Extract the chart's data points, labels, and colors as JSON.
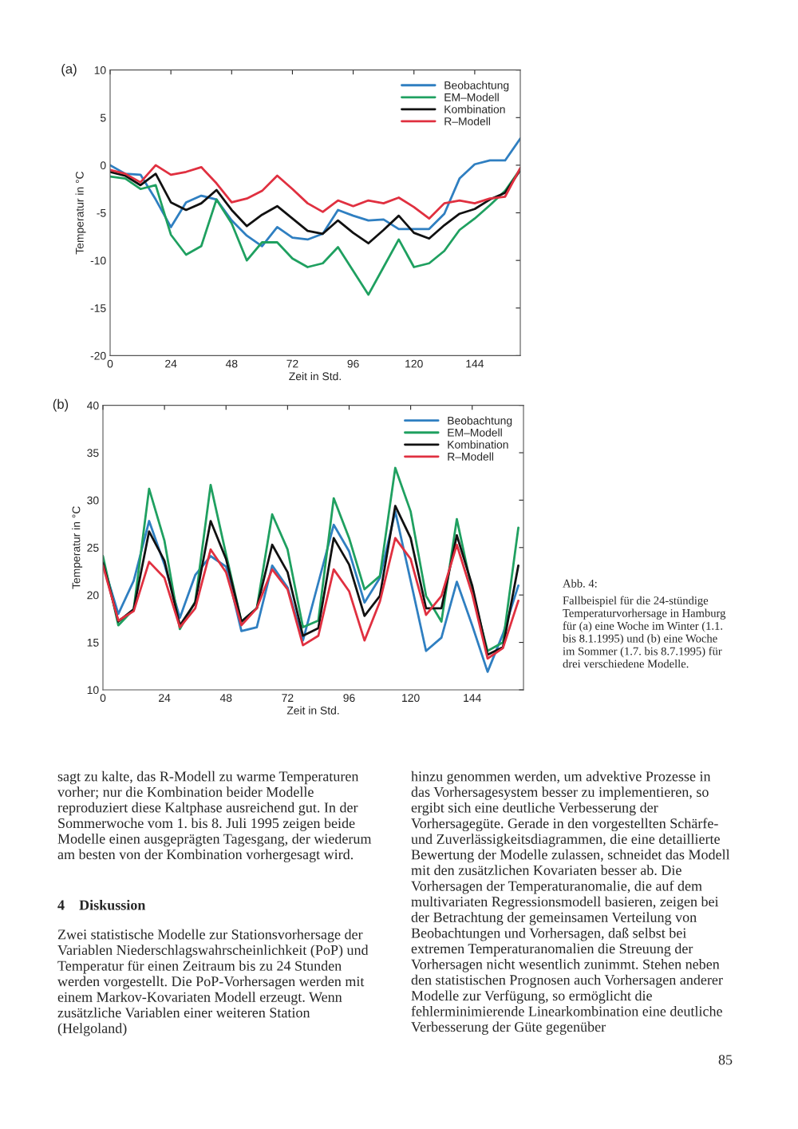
{
  "chart_data": [
    {
      "type": "line",
      "title": "(a)",
      "xlabel": "Zeit in Std.",
      "ylabel": "Temperatur in °C",
      "x": [
        0,
        6,
        12,
        18,
        24,
        30,
        36,
        42,
        48,
        54,
        60,
        66,
        72,
        78,
        84,
        90,
        96,
        102,
        108,
        114,
        120,
        126,
        132,
        138,
        144,
        150,
        156,
        162
      ],
      "xlim": [
        0,
        162
      ],
      "xticks": [
        0,
        24,
        48,
        72,
        96,
        120,
        144
      ],
      "ylim": [
        -20,
        10
      ],
      "yticks": [
        -20,
        -15,
        -10,
        -5,
        0,
        5,
        10
      ],
      "grid": false,
      "legend": "top right",
      "line_style": "solid",
      "series": [
        {
          "name": "Beobachtung",
          "color": "#2f7fc1",
          "values": [
            0,
            -0.9,
            -1.0,
            -3.6,
            -6.5,
            -3.9,
            -3.2,
            -3.6,
            -5.8,
            -7.4,
            -8.5,
            -6.5,
            -7.6,
            -7.8,
            -7.2,
            -4.7,
            -5.3,
            -5.8,
            -5.7,
            -6.7,
            -6.7,
            -6.7,
            -5.1,
            -1.4,
            0.1,
            0.5,
            0.5,
            2.8
          ]
        },
        {
          "name": "EM–Modell",
          "color": "#1fa060",
          "values": [
            -1.2,
            -1.4,
            -2.5,
            -2.1,
            -7.3,
            -9.4,
            -8.5,
            -3.6,
            -6.1,
            -10.0,
            -8.1,
            -8.1,
            -9.8,
            -10.7,
            -10.3,
            -8.6,
            -11.1,
            -13.6,
            -10.7,
            -7.8,
            -10.7,
            -10.3,
            -9.0,
            -6.8,
            -5.6,
            -4.2,
            -2.7,
            -0.4
          ]
        },
        {
          "name": "Kombination",
          "color": "#111111",
          "values": [
            -0.7,
            -1.1,
            -2.1,
            -0.9,
            -3.9,
            -4.7,
            -4.0,
            -2.6,
            -4.7,
            -6.4,
            -5.2,
            -4.3,
            -5.6,
            -6.9,
            -7.2,
            -5.8,
            -7.1,
            -8.2,
            -6.8,
            -5.3,
            -7.1,
            -7.7,
            -6.3,
            -5.1,
            -4.6,
            -3.6,
            -2.9,
            -0.5
          ]
        },
        {
          "name": "R–Modell",
          "color": "#e03040",
          "values": [
            -0.5,
            -0.9,
            -1.8,
            0,
            -1.0,
            -0.7,
            -0.2,
            -1.9,
            -3.9,
            -3.5,
            -2.7,
            -1.1,
            -2.5,
            -4.0,
            -4.9,
            -3.7,
            -4.3,
            -3.7,
            -4.0,
            -3.4,
            -4.4,
            -5.6,
            -4.0,
            -3.7,
            -4.0,
            -3.5,
            -3.3,
            -0.3
          ]
        }
      ]
    },
    {
      "type": "line",
      "title": "(b)",
      "xlabel": "Zeit in Std.",
      "ylabel": "Temperatur in °C",
      "x": [
        0,
        6,
        12,
        18,
        24,
        30,
        36,
        42,
        48,
        54,
        60,
        66,
        72,
        78,
        84,
        90,
        96,
        102,
        108,
        114,
        120,
        126,
        132,
        138,
        144,
        150,
        156,
        162
      ],
      "xlim": [
        0,
        164
      ],
      "xticks": [
        0,
        24,
        48,
        72,
        96,
        120,
        144
      ],
      "ylim": [
        10,
        40
      ],
      "yticks": [
        10,
        15,
        20,
        25,
        30,
        35,
        40
      ],
      "grid": false,
      "legend": "top right",
      "line_style": "solid",
      "series": [
        {
          "name": "Beobachtung",
          "color": "#2f7fc1",
          "values": [
            23.4,
            18.0,
            21.5,
            27.8,
            23.2,
            17.6,
            22.1,
            24.1,
            23.0,
            16.2,
            16.6,
            23.1,
            20.8,
            15.2,
            21.3,
            27.4,
            24.6,
            19.2,
            21.8,
            28.8,
            21.5,
            14.1,
            15.5,
            21.4,
            16.8,
            11.9,
            15.9,
            21.0
          ]
        },
        {
          "name": "EM–Modell",
          "color": "#1fa060",
          "values": [
            24.1,
            16.8,
            18.5,
            31.2,
            25.7,
            16.4,
            19.3,
            31.6,
            24.3,
            17.2,
            18.6,
            28.5,
            24.8,
            16.6,
            17.3,
            30.2,
            26.0,
            20.6,
            22.0,
            33.4,
            28.8,
            19.9,
            17.2,
            28.0,
            20.4,
            14.1,
            15.0,
            27.1
          ]
        },
        {
          "name": "Kombination",
          "color": "#111111",
          "values": [
            23.4,
            17.2,
            18.5,
            26.7,
            23.6,
            16.8,
            19.2,
            27.8,
            23.8,
            17.2,
            18.6,
            25.3,
            22.4,
            15.7,
            16.5,
            26.0,
            23.2,
            17.8,
            19.9,
            29.4,
            26.0,
            18.6,
            18.6,
            26.3,
            21.0,
            13.7,
            14.5,
            23.1
          ]
        },
        {
          "name": "R–Modell",
          "color": "#e03040",
          "values": [
            23.1,
            17.3,
            18.3,
            23.5,
            21.8,
            16.6,
            18.6,
            24.8,
            22.4,
            16.8,
            18.6,
            22.7,
            20.6,
            14.7,
            15.7,
            22.7,
            20.4,
            15.2,
            19.3,
            26.0,
            23.8,
            17.9,
            19.9,
            25.3,
            20.1,
            13.3,
            14.4,
            19.4
          ]
        }
      ],
      "annotations": [
        "Abb. 4:",
        "Fallbeispiel für die 24-stündige Temperaturvorhersage in Hamburg für (a) eine Woche im Winter (1.1. bis 8.1.1995) und (b) eine Woche im Sommer (1.7. bis 8.7.1995) für drei verschiedene Modelle.",
        "sagt zu kalte, das R-Modell zu warme Temperaturen vorher; nur die Kombination beider Modelle reproduziert diese Kaltphase ausreichend gut. In der Sommerwoche vom 1. bis 8. Juli 1995 zeigen beide Modelle einen ausgeprägten Tagesgang, der wiederum am besten von der Kombination vorhergesagt wird.",
        "4    Diskussion",
        "Zwei statistische Modelle zur Stationsvorhersage der Variablen Niederschlagswahrscheinlichkeit (PoP) und Temperatur für einen Zeitraum bis zu 24 Stunden werden vorgestellt. Die PoP-Vorhersagen werden mit einem Markov-Kovariaten Modell erzeugt. Wenn zusätzliche Variablen einer weiteren Station (Helgoland)",
        "hinzu genommen werden, um advektive Prozesse in das Vorhersagesystem besser zu implementieren, so ergibt sich eine deutliche Verbesserung der Vorhersagegüte. Gerade in den vorgestellten Schärfe- und Zuverlässigkeitsdiagrammen, die eine detaillierte Bewertung der Modelle zulassen, schneidet das Modell mit den zusätzlichen Kovariaten besser ab. Die Vorhersagen der Temperaturanomalie, die auf dem multivariaten Regressionsmodell basieren, zeigen bei der Betrachtung der gemeinsamen Verteilung von Beobachtungen und Vorhersagen, daß selbst bei extremen Temperaturanomalien die Streuung der Vorhersagen nicht wesentlich zunimmt. Stehen neben den statistischen Prognosen auch Vorhersagen anderer Modelle zur Verfügung, so ermöglicht die fehlerminimierende Linearkombination eine deutliche Verbesserung der Güte gegenüber",
        "85"
      ]
    }
  ]
}
